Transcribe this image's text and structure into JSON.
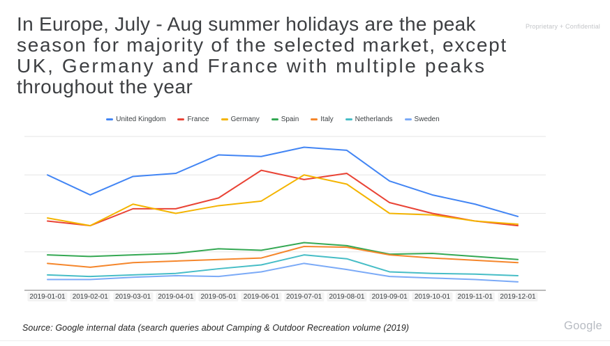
{
  "slide": {
    "title_lines": [
      "In Europe, July - Aug summer holidays are the peak",
      "season for majority of the selected market, except",
      "UK, Germany and France with multiple peaks",
      "throughout the year"
    ],
    "watermark": "Proprietary + Confidential",
    "source": "Source: Google internal data (search queries about Camping & Outdoor Recreation volume (2019)",
    "brand": "Google"
  },
  "chart_data": {
    "type": "line",
    "title": "",
    "xlabel": "",
    "ylabel": "",
    "x": [
      "2019-01-01",
      "2019-02-01",
      "2019-03-01",
      "2019-04-01",
      "2019-05-01",
      "2019-06-01",
      "2019-07-01",
      "2019-08-01",
      "2019-09-01",
      "2019-10-01",
      "2019-11-01",
      "2019-12-01"
    ],
    "series": [
      {
        "name": "United Kingdom",
        "color": "#4285F4",
        "values": [
          75,
          62,
          74,
          76,
          88,
          87,
          93,
          91,
          71,
          62,
          56,
          48
        ]
      },
      {
        "name": "France",
        "color": "#E94335",
        "values": [
          45,
          42,
          53,
          53,
          60,
          78,
          72,
          76,
          57,
          50,
          45,
          42
        ]
      },
      {
        "name": "Germany",
        "color": "#F4B400",
        "values": [
          47,
          42,
          56,
          50,
          55,
          58,
          75,
          69,
          50,
          49,
          45,
          43
        ]
      },
      {
        "name": "Spain",
        "color": "#34A853",
        "values": [
          23,
          22,
          23,
          24,
          27,
          26,
          31,
          29,
          23.5,
          24,
          22,
          20
        ]
      },
      {
        "name": "Italy",
        "color": "#F5862B",
        "values": [
          17.5,
          15,
          18,
          19,
          20,
          21,
          28.5,
          28,
          23,
          21,
          19.5,
          18
        ]
      },
      {
        "name": "Netherlands",
        "color": "#46BDC6",
        "values": [
          10,
          9,
          10,
          11,
          14,
          16.5,
          23,
          20.5,
          12,
          11,
          10.5,
          9.5
        ]
      },
      {
        "name": "Sweden",
        "color": "#7BAAF7",
        "values": [
          7,
          7,
          8.5,
          9.5,
          9,
          12,
          17.5,
          13.5,
          9,
          8,
          7,
          5.5
        ]
      }
    ],
    "ylim": [
      0,
      100
    ],
    "gridlines": [
      0,
      25,
      50,
      75,
      100
    ],
    "y_axis_labels_visible": false,
    "legend_position": "top",
    "grid_color": "#e6e6e6",
    "axis_color": "#757575"
  }
}
